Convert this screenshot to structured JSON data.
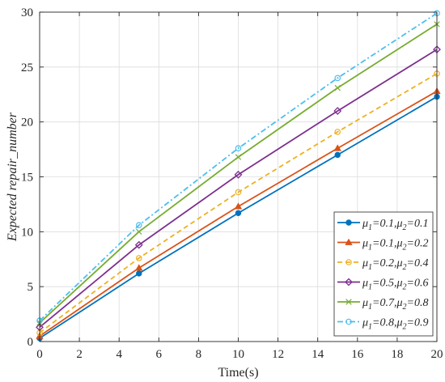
{
  "chart_data": {
    "type": "line",
    "title": "",
    "xlabel": "Time(s)",
    "ylabel": "Expected repair_number",
    "xlim": [
      0,
      20
    ],
    "ylim": [
      0,
      30
    ],
    "x_ticks": [
      0,
      2,
      4,
      6,
      8,
      10,
      12,
      14,
      16,
      18,
      20
    ],
    "y_ticks": [
      0,
      5,
      10,
      15,
      20,
      25,
      30
    ],
    "grid": true,
    "legend_position": "bottom-right",
    "x": [
      0,
      5,
      10,
      15,
      20
    ],
    "series": [
      {
        "name": "μ1=0.1,μ2=0.1",
        "name_parts": {
          "a": "0.1",
          "b": "0.1"
        },
        "color": "#0072BD",
        "line_style": "solid",
        "marker": "filled-circle",
        "values": [
          0.3,
          6.2,
          11.7,
          17.0,
          22.3
        ]
      },
      {
        "name": "μ1=0.1,μ2=0.2",
        "name_parts": {
          "a": "0.1",
          "b": "0.2"
        },
        "color": "#D95319",
        "line_style": "solid",
        "marker": "filled-triangle",
        "values": [
          0.5,
          6.7,
          12.3,
          17.6,
          22.8
        ]
      },
      {
        "name": "μ1=0.2,μ2=0.4",
        "name_parts": {
          "a": "0.2",
          "b": "0.4"
        },
        "color": "#EDB120",
        "line_style": "dashed",
        "marker": "open-circle",
        "values": [
          0.8,
          7.6,
          13.6,
          19.1,
          24.4
        ]
      },
      {
        "name": "μ1=0.5,μ2=0.6",
        "name_parts": {
          "a": "0.5",
          "b": "0.6"
        },
        "color": "#7E2F8E",
        "line_style": "solid",
        "marker": "open-diamond",
        "values": [
          1.3,
          8.8,
          15.2,
          21.0,
          26.6
        ]
      },
      {
        "name": "μ1=0.7,μ2=0.8",
        "name_parts": {
          "a": "0.7",
          "b": "0.8"
        },
        "color": "#77AC30",
        "line_style": "solid",
        "marker": "x",
        "values": [
          1.7,
          10.0,
          16.8,
          23.1,
          28.9
        ]
      },
      {
        "name": "μ1=0.8,μ2=0.9",
        "name_parts": {
          "a": "0.8",
          "b": "0.9"
        },
        "color": "#4DBEEE",
        "line_style": "dash-dot",
        "marker": "open-circle",
        "values": [
          1.9,
          10.6,
          17.6,
          24.0,
          29.9
        ]
      }
    ]
  }
}
